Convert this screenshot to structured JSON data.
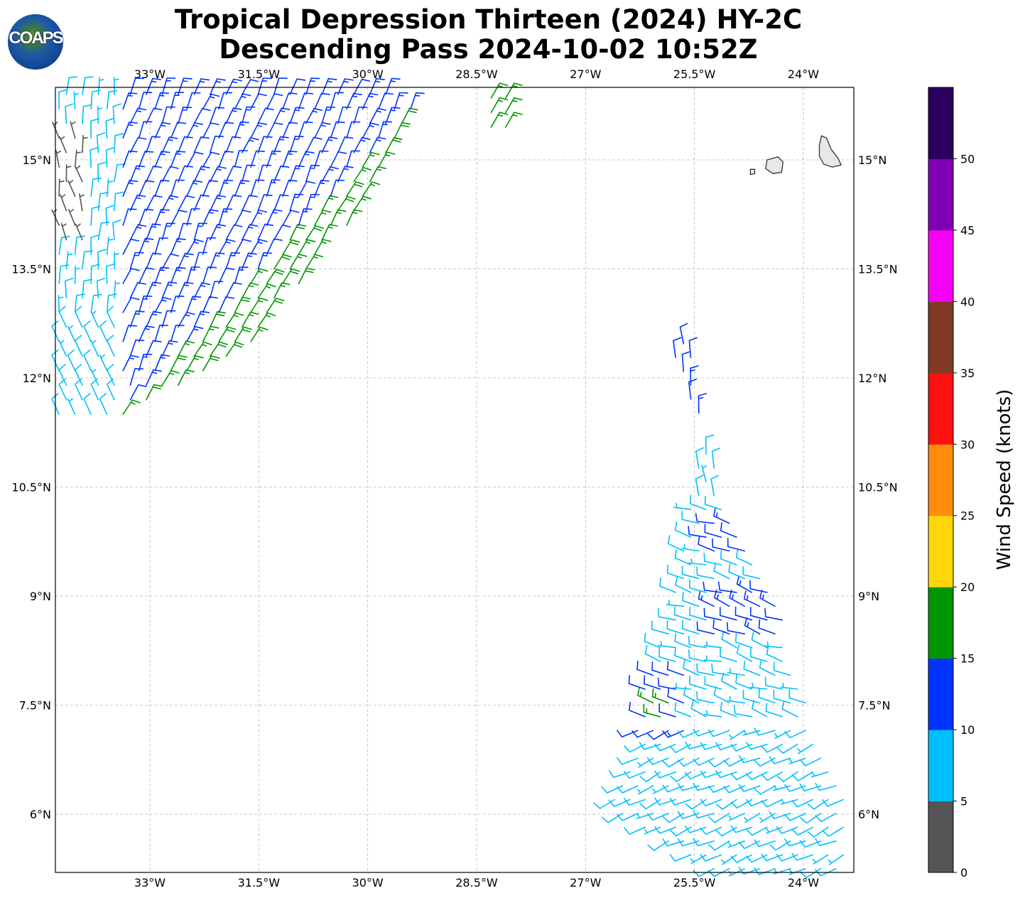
{
  "header": {
    "title_line1": "Tropical Depression Thirteen (2024) HY-2C",
    "title_line2": "Descending Pass 2024-10-02 10:52Z",
    "logo_text": "COAPS"
  },
  "chart_data": {
    "type": "wind-barb-map",
    "lon_range": [
      -34.3,
      -23.3
    ],
    "lat_range": [
      5.2,
      16.0
    ],
    "grid": true,
    "lon_ticks": [
      -33,
      -31.5,
      -30,
      -28.5,
      -27,
      -25.5,
      -24
    ],
    "lon_tick_labels": [
      "33°W",
      "31.5°W",
      "30°W",
      "28.5°W",
      "27°W",
      "25.5°W",
      "24°W"
    ],
    "lat_ticks": [
      15,
      13.5,
      12,
      10.5,
      9,
      7.5,
      6
    ],
    "lat_tick_labels": [
      "15°N",
      "13.5°N",
      "12°N",
      "10.5°N",
      "9°N",
      "7.5°N",
      "6°N"
    ],
    "colorbar": {
      "label": "Wind Speed (knots)",
      "range": [
        0,
        55
      ],
      "bounds": [
        0,
        5,
        10,
        15,
        20,
        25,
        30,
        35,
        40,
        45,
        50,
        55
      ],
      "tick_labels": [
        "0",
        "5",
        "10",
        "15",
        "20",
        "25",
        "30",
        "35",
        "40",
        "45",
        "50"
      ],
      "colors": [
        "#555555",
        "#00bfff",
        "#0033ff",
        "#009600",
        "#ffd60a",
        "#ff8c0a",
        "#ff1010",
        "#7f3a26",
        "#f600f6",
        "#8000b4",
        "#2e005e"
      ]
    },
    "swaths": [
      {
        "name": "northwest-swath",
        "polygon": [
          [
            -34.3,
            16.0
          ],
          [
            -29.95,
            16.0
          ],
          [
            -29.35,
            15.75
          ],
          [
            -29.9,
            14.6
          ],
          [
            -30.66,
            13.58
          ],
          [
            -31.45,
            12.7
          ],
          [
            -31.55,
            12.4
          ],
          [
            -32.3,
            12.0
          ],
          [
            -33.3,
            11.5
          ],
          [
            -33.55,
            11.4
          ],
          [
            -34.3,
            11.3
          ]
        ]
      },
      {
        "name": "northwest-fragment",
        "polygon": [
          [
            -28.5,
            16.0
          ],
          [
            -27.95,
            16.0
          ],
          [
            -28.0,
            15.55
          ],
          [
            -28.2,
            15.05
          ],
          [
            -28.45,
            15.55
          ]
        ]
      },
      {
        "name": "southeast-swath",
        "polygon": [
          [
            -25.8,
            12.65
          ],
          [
            -25.55,
            12.55
          ],
          [
            -25.3,
            11.0
          ],
          [
            -24.75,
            9.6
          ],
          [
            -24.25,
            8.6
          ],
          [
            -23.95,
            7.6
          ],
          [
            -23.8,
            7.05
          ],
          [
            -23.4,
            6.1
          ],
          [
            -23.35,
            5.2
          ],
          [
            -25.25,
            5.2
          ],
          [
            -26.7,
            6.05
          ],
          [
            -26.3,
            7.0
          ],
          [
            -26.2,
            7.9
          ],
          [
            -25.75,
            9.1
          ],
          [
            -25.55,
            10.3
          ],
          [
            -25.4,
            11.2
          ],
          [
            -25.75,
            12.1
          ]
        ]
      }
    ],
    "islands": [
      {
        "name": "santiago",
        "outline": [
          [
            -23.75,
            15.33
          ],
          [
            -23.68,
            15.3
          ],
          [
            -23.62,
            15.15
          ],
          [
            -23.52,
            15.02
          ],
          [
            -23.48,
            14.93
          ],
          [
            -23.6,
            14.9
          ],
          [
            -23.72,
            14.94
          ],
          [
            -23.78,
            15.05
          ],
          [
            -23.78,
            15.2
          ]
        ]
      },
      {
        "name": "fogo",
        "outline": [
          [
            -24.5,
            15.0
          ],
          [
            -24.35,
            15.04
          ],
          [
            -24.28,
            14.97
          ],
          [
            -24.3,
            14.83
          ],
          [
            -24.42,
            14.81
          ],
          [
            -24.52,
            14.88
          ]
        ]
      },
      {
        "name": "brava",
        "outline": [
          [
            -24.73,
            14.87
          ],
          [
            -24.67,
            14.87
          ],
          [
            -24.67,
            14.81
          ],
          [
            -24.73,
            14.8
          ]
        ]
      }
    ]
  }
}
